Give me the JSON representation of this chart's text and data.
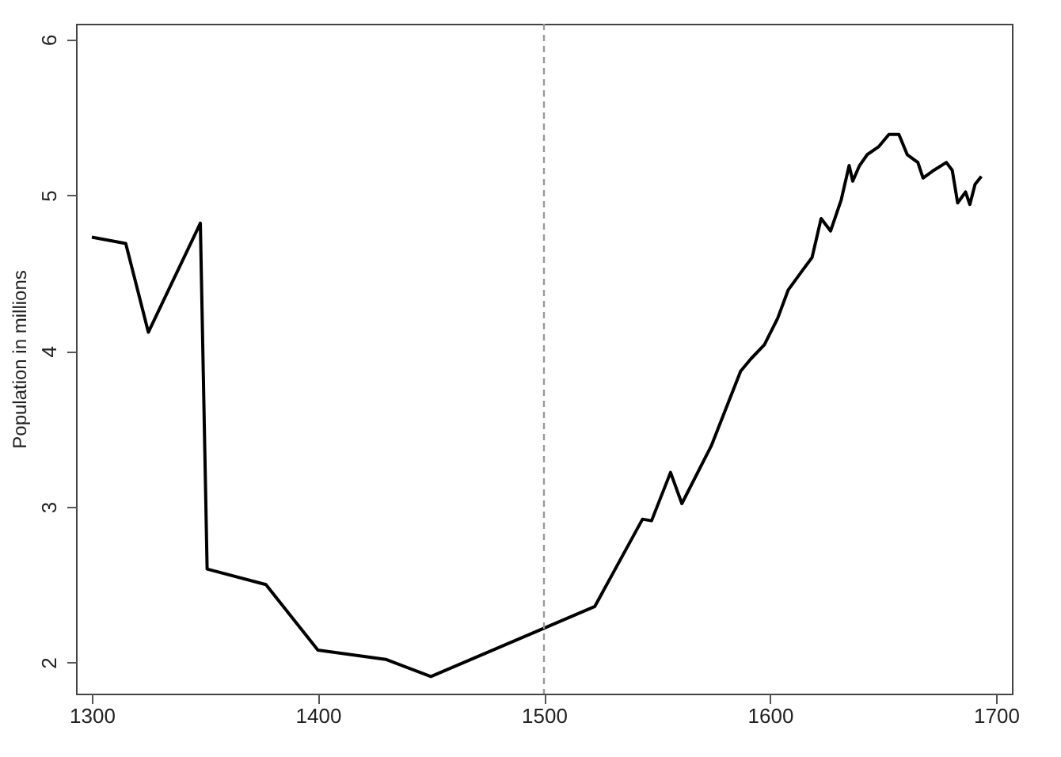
{
  "chart_data": {
    "type": "line",
    "ylabel": "Population in millions",
    "x": [
      1300,
      1315,
      1325,
      1348,
      1351,
      1377,
      1400,
      1430,
      1450,
      1500,
      1522.5,
      1543.6,
      1547.6,
      1556,
      1561,
      1574,
      1587,
      1591.6,
      1597.5,
      1603.4,
      1608,
      1614,
      1618.6,
      1622.6,
      1626.8,
      1631.5,
      1635,
      1636.6,
      1639.6,
      1643,
      1648,
      1652.6,
      1657,
      1660.7,
      1665.4,
      1667.7,
      1672.5,
      1678,
      1680.6,
      1683,
      1686.5,
      1688.4,
      1690.7,
      1693.5
    ],
    "series": [
      {
        "color": "#000000",
        "values": [
          4.73,
          4.69,
          4.12,
          4.82,
          2.6,
          2.5,
          2.08,
          2.02,
          1.91,
          2.22,
          2.36,
          2.92,
          2.91,
          3.22,
          3.02,
          3.39,
          3.87,
          3.95,
          4.04,
          4.21,
          4.39,
          4.51,
          4.6,
          4.85,
          4.77,
          4.97,
          5.19,
          5.09,
          5.19,
          5.26,
          5.31,
          5.39,
          5.39,
          5.26,
          5.21,
          5.11,
          5.16,
          5.21,
          5.16,
          4.95,
          5.02,
          4.94,
          5.07,
          5.12
        ]
      }
    ],
    "xlim": [
      1293,
      1707
    ],
    "ylim": [
      1.8,
      6.1
    ],
    "xticks": [
      1300,
      1400,
      1500,
      1600,
      1700
    ],
    "yticks": [
      2,
      3,
      4,
      5,
      6
    ],
    "ref_lines": [
      {
        "axis": "x",
        "value": 1500,
        "color": "#999999",
        "line_style": "dashed"
      }
    ],
    "grid": false,
    "legend": false,
    "line_style": "solid",
    "marker": "none"
  }
}
